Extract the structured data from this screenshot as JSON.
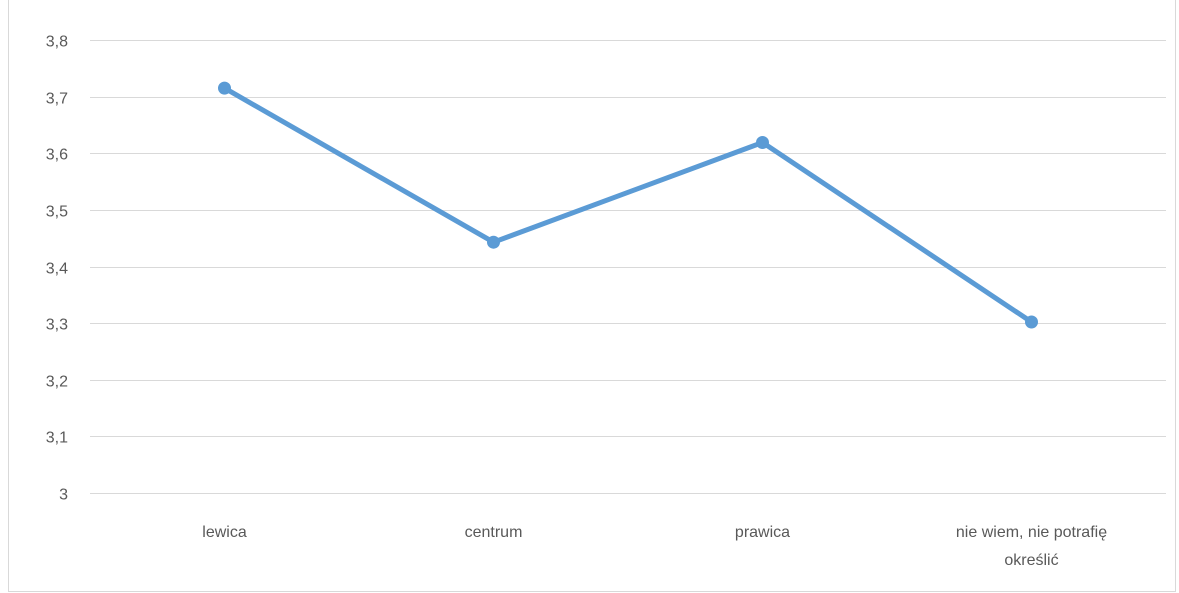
{
  "chart_data": {
    "type": "line",
    "categories": [
      "lewica",
      "centrum",
      "prawica",
      "nie wiem, nie potrafię określić"
    ],
    "category_label_lines": [
      [
        "lewica"
      ],
      [
        "centrum"
      ],
      [
        "prawica"
      ],
      [
        "nie wiem, nie potrafię",
        "określić"
      ]
    ],
    "series": [
      {
        "values": [
          3.715,
          3.443,
          3.619,
          3.302
        ],
        "color": "#5b9bd5"
      }
    ],
    "ylim": [
      3,
      3.8
    ],
    "y_ticks": [
      "3",
      "3,1",
      "3,2",
      "3,3",
      "3,4",
      "3,5",
      "3,6",
      "3,7",
      "3,8"
    ],
    "y_tick_values": [
      3,
      3.1,
      3.2,
      3.3,
      3.4,
      3.5,
      3.6,
      3.7,
      3.8
    ],
    "grid": true,
    "legend": "none",
    "title": "",
    "xlabel": "",
    "ylabel": ""
  }
}
